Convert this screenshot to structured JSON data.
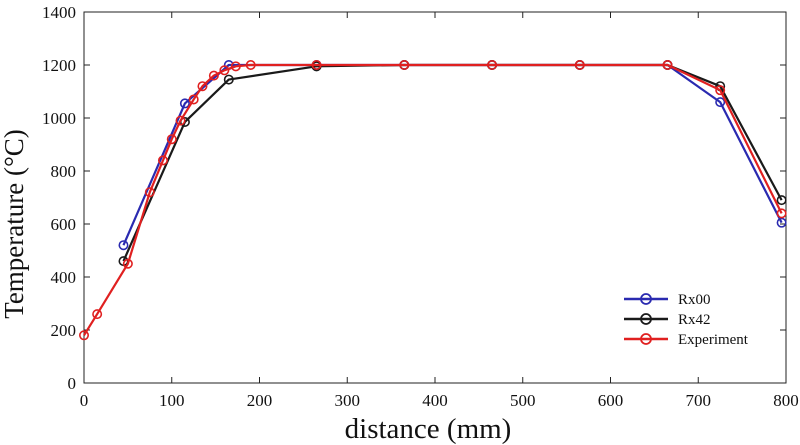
{
  "chart_data": {
    "type": "line",
    "xlabel": "distance (mm)",
    "ylabel": "Temperature (°C)",
    "xlim": [
      0,
      800
    ],
    "ylim": [
      0,
      1400
    ],
    "xticks": [
      0,
      100,
      200,
      300,
      400,
      500,
      600,
      700,
      800
    ],
    "yticks": [
      0,
      200,
      400,
      600,
      800,
      1000,
      1200,
      1400
    ],
    "grid": false,
    "legend_position": "bottom-right",
    "colors": {
      "Rx00": "#2a2ab0",
      "Rx42": "#1a1a1a",
      "Experiment": "#e02020"
    },
    "series": [
      {
        "name": "Rx00",
        "x": [
          45,
          115,
          165,
          265,
          365,
          465,
          565,
          665,
          725,
          795
        ],
        "y": [
          520,
          1055,
          1200,
          1200,
          1200,
          1200,
          1200,
          1200,
          1060,
          605
        ]
      },
      {
        "name": "Rx42",
        "x": [
          45,
          115,
          165,
          265,
          365,
          465,
          565,
          665,
          725,
          795
        ],
        "y": [
          460,
          985,
          1145,
          1195,
          1200,
          1200,
          1200,
          1200,
          1120,
          690
        ]
      },
      {
        "name": "Experiment",
        "x": [
          0,
          15,
          50,
          75,
          90,
          100,
          110,
          125,
          135,
          148,
          160,
          173,
          190,
          265,
          365,
          465,
          565,
          665,
          725,
          795
        ],
        "y": [
          180,
          260,
          450,
          720,
          840,
          920,
          990,
          1070,
          1120,
          1160,
          1180,
          1195,
          1200,
          1200,
          1200,
          1200,
          1200,
          1200,
          1105,
          640
        ]
      }
    ]
  }
}
